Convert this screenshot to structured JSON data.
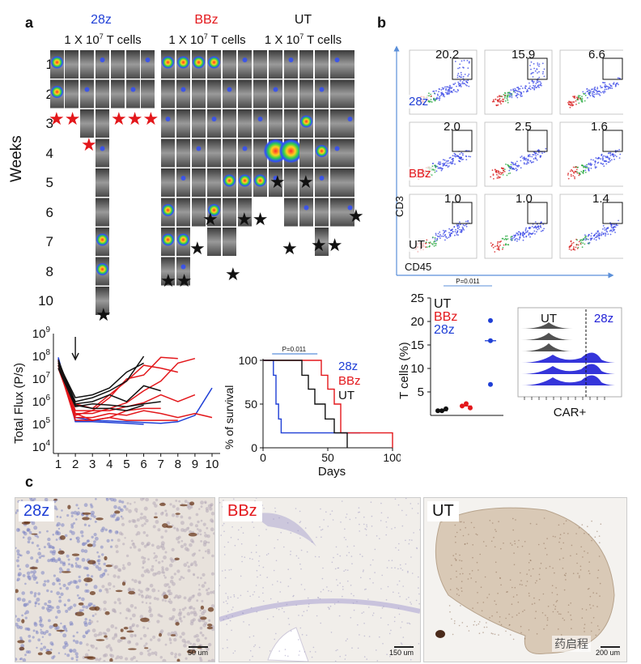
{
  "panels": {
    "a": "a",
    "b": "b",
    "c": "c"
  },
  "imaging": {
    "groups": [
      {
        "name": "28z",
        "color": "#1f3fd6",
        "dose": "1 X 10",
        "exp": "7",
        "unit": " T cells"
      },
      {
        "name": "BBz",
        "color": "#e3171b",
        "dose": "1 X 10",
        "exp": "7",
        "unit": " T cells"
      },
      {
        "name": "UT",
        "color": "#111111",
        "dose": "1 X 10",
        "exp": "7",
        "unit": " T cells"
      }
    ],
    "weeks_label": "Weeks",
    "week_rows": [
      "1",
      "2",
      "3",
      "4",
      "5",
      "6",
      "7",
      "8",
      "10"
    ]
  },
  "flow": {
    "y_label": "CD3",
    "x_label": "CD45",
    "rows": [
      "28z",
      "BBz",
      "UT"
    ],
    "row_colors": [
      "#1f3fd6",
      "#e3171b",
      "#111111"
    ],
    "values": [
      [
        "20.2",
        "15.9",
        "6.6"
      ],
      [
        "2.0",
        "2.5",
        "1.6"
      ],
      [
        "1.0",
        "1.0",
        "1.4"
      ]
    ]
  },
  "chart_data": [
    {
      "type": "line",
      "title": "",
      "xlabel": "",
      "ylabel": "Total Flux (P/s)",
      "x_ticks": [
        "1",
        "2",
        "3",
        "4",
        "5",
        "6",
        "7",
        "8",
        "9",
        "10"
      ],
      "y_ticks": [
        "10^4",
        "10^5",
        "10^6",
        "10^7",
        "10^8",
        "10^9"
      ],
      "y_scale": "log",
      "ylim": [
        10000,
        1000000000
      ],
      "series": [
        {
          "group": "28z",
          "color": "#1f3fd6",
          "x": [
            1,
            2,
            3,
            4,
            5,
            6
          ],
          "y": [
            80000000,
            130000,
            130000,
            120000,
            110000,
            100000
          ]
        },
        {
          "group": "28z",
          "color": "#1f3fd6",
          "x": [
            1,
            2,
            3,
            4,
            5,
            6,
            7,
            8,
            9,
            10
          ],
          "y": [
            90000000,
            150000,
            150000,
            140000,
            130000,
            120000,
            110000,
            130000,
            250000,
            4000000
          ]
        },
        {
          "group": "28z",
          "color": "#1f3fd6",
          "x": [
            1,
            2,
            3
          ],
          "y": [
            70000000,
            200000,
            150000
          ]
        },
        {
          "group": "BBz",
          "color": "#e3171b",
          "x": [
            1,
            2,
            3,
            4,
            5,
            6,
            7,
            8
          ],
          "y": [
            50000000,
            400000,
            400000,
            1500000,
            10000000,
            15000000,
            90000000,
            80000000
          ]
        },
        {
          "group": "BBz",
          "color": "#e3171b",
          "x": [
            1,
            2,
            3,
            4,
            5,
            6,
            7,
            8
          ],
          "y": [
            60000000,
            800000,
            500000,
            2000000,
            8000000,
            40000000,
            30000000,
            20000000
          ]
        },
        {
          "group": "BBz",
          "color": "#e3171b",
          "x": [
            1,
            2,
            3,
            4,
            5,
            6,
            7,
            8,
            9
          ],
          "y": [
            40000000,
            300000,
            300000,
            500000,
            900000,
            3000000,
            8000000,
            50000000,
            80000000
          ]
        },
        {
          "group": "BBz",
          "color": "#e3171b",
          "x": [
            1,
            2,
            3,
            4,
            5,
            6,
            7,
            8,
            9
          ],
          "y": [
            30000000,
            250000,
            400000,
            400000,
            600000,
            900000,
            2000000,
            1000000,
            2000000
          ]
        },
        {
          "group": "BBz",
          "color": "#e3171b",
          "x": [
            1,
            2,
            3,
            4,
            5,
            6,
            7,
            8,
            9,
            10
          ],
          "y": [
            50000000,
            200000,
            200000,
            300000,
            250000,
            400000,
            300000,
            200000,
            300000,
            200000
          ]
        },
        {
          "group": "BBz",
          "color": "#e3171b",
          "x": [
            1,
            2,
            3,
            4,
            5,
            6,
            7
          ],
          "y": [
            70000000,
            300000,
            150000,
            200000,
            400000,
            500000,
            500000
          ]
        },
        {
          "group": "BBz",
          "color": "#e3171b",
          "x": [
            1,
            2,
            3,
            4,
            5,
            6,
            7,
            8
          ],
          "y": [
            40000000,
            150000,
            150000,
            200000,
            150000,
            150000,
            150000,
            150000
          ]
        },
        {
          "group": "UT",
          "color": "#111111",
          "x": [
            1,
            2,
            3,
            4,
            5,
            6
          ],
          "y": [
            50000000,
            1500000,
            2000000,
            4000000,
            20000000,
            50000000
          ]
        },
        {
          "group": "UT",
          "color": "#111111",
          "x": [
            1,
            2,
            3,
            4,
            5,
            6
          ],
          "y": [
            60000000,
            1000000,
            1500000,
            3000000,
            8000000,
            100000000
          ]
        },
        {
          "group": "UT",
          "color": "#111111",
          "x": [
            1,
            2,
            3,
            4,
            5,
            6,
            7
          ],
          "y": [
            40000000,
            800000,
            1000000,
            2000000,
            1000000,
            5000000,
            3000000
          ]
        },
        {
          "group": "UT",
          "color": "#111111",
          "x": [
            1,
            2,
            3,
            4,
            5,
            6,
            7
          ],
          "y": [
            30000000,
            600000,
            800000,
            700000,
            600000,
            800000,
            1000000
          ]
        },
        {
          "group": "UT",
          "color": "#111111",
          "x": [
            1,
            2,
            3,
            4,
            5,
            6
          ],
          "y": [
            70000000,
            700000,
            500000,
            500000,
            400000,
            700000
          ]
        }
      ]
    },
    {
      "type": "line",
      "title": "",
      "xlabel": "Days",
      "ylabel": "% of survival",
      "x_ticks": [
        0,
        50,
        100
      ],
      "y_ticks": [
        0,
        50,
        100
      ],
      "xlim": [
        0,
        100
      ],
      "ylim": [
        0,
        100
      ],
      "annotation": "P=0.011",
      "legend": [
        "28z",
        "BBz",
        "UT"
      ],
      "series": [
        {
          "name": "28z",
          "color": "#1f3fd6",
          "x": [
            0,
            8,
            8,
            10,
            10,
            12,
            12,
            14,
            14,
            75
          ],
          "y": [
            100,
            100,
            83,
            83,
            50,
            50,
            33,
            33,
            17,
            17
          ]
        },
        {
          "name": "BBz",
          "color": "#e3171b",
          "x": [
            0,
            45,
            45,
            50,
            50,
            55,
            55,
            60,
            60,
            100,
            100
          ],
          "y": [
            100,
            100,
            83,
            83,
            67,
            67,
            50,
            50,
            17,
            17,
            0
          ]
        },
        {
          "name": "UT",
          "color": "#111111",
          "x": [
            0,
            30,
            30,
            35,
            35,
            40,
            40,
            48,
            48,
            55,
            55,
            65,
            65
          ],
          "y": [
            100,
            100,
            83,
            83,
            67,
            67,
            50,
            50,
            33,
            33,
            17,
            17,
            0
          ]
        }
      ]
    },
    {
      "type": "scatter",
      "title": "",
      "xlabel": "",
      "ylabel": "T cells (%)",
      "y_ticks": [
        5,
        10,
        15,
        20,
        25
      ],
      "ylim": [
        0,
        25
      ],
      "annotation": "P=0.011",
      "legend": [
        "UT",
        "BBz",
        "28z"
      ],
      "series": [
        {
          "name": "UT",
          "color": "#111111",
          "values": [
            1.0,
            1.0,
            1.4
          ],
          "median": 1.0
        },
        {
          "name": "BBz",
          "color": "#e3171b",
          "values": [
            2.0,
            2.5,
            1.6
          ],
          "median": 2.0
        },
        {
          "name": "28z",
          "color": "#1f3fd6",
          "values": [
            20.2,
            15.9,
            6.6
          ],
          "median": 15.9
        }
      ]
    },
    {
      "type": "area",
      "title": "",
      "xlabel": "CAR+",
      "legend": [
        "UT",
        "28z"
      ],
      "colors": {
        "UT": "#333333",
        "28z": "#1f1fd6"
      }
    }
  ],
  "histology": [
    {
      "label": "28z",
      "color": "#1f3fd6",
      "scale": "50 um"
    },
    {
      "label": "BBz",
      "color": "#e3171b",
      "scale": "150 um"
    },
    {
      "label": "UT",
      "color": "#111111",
      "scale": "200 um"
    }
  ],
  "watermark": "药启程"
}
